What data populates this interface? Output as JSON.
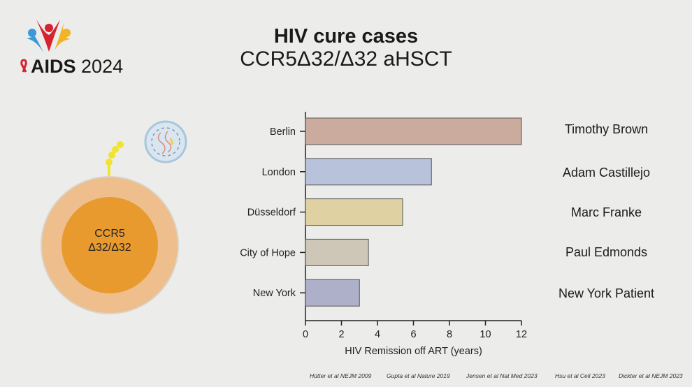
{
  "header": {
    "title": "HIV cure cases",
    "subtitle": "CCR5Δ32/Δ32 aHSCT"
  },
  "logo": {
    "text_bold": "AIDS",
    "text_year": "2024"
  },
  "cell": {
    "label_line1": "CCR5",
    "label_line2": "Δ32/Δ32"
  },
  "patients": [
    "Timothy Brown",
    "Adam Castillejo",
    "Marc Franke",
    "Paul Edmonds",
    "New York Patient"
  ],
  "references": [
    "Hütter et al NEJM 2009",
    "Gupta et al Nature 2019",
    "Jensen et al Nat Med 2023",
    "Hsu et al Cell 2023",
    "Dickter et al NEJM 2023"
  ],
  "chart_data": {
    "type": "bar",
    "orientation": "horizontal",
    "categories": [
      "Berlin",
      "London",
      "Düsseldorf",
      "City of Hope",
      "New York"
    ],
    "values": [
      12,
      7,
      5.4,
      3.5,
      3
    ],
    "colors": [
      "#cbab9e",
      "#b8c2da",
      "#dfd1a2",
      "#cec7b8",
      "#aeb0ca"
    ],
    "xlabel": "HIV Remission off ART (years)",
    "xlim": [
      0,
      12
    ],
    "xticks": [
      0,
      2,
      4,
      6,
      8,
      10,
      12
    ],
    "grid": false
  }
}
